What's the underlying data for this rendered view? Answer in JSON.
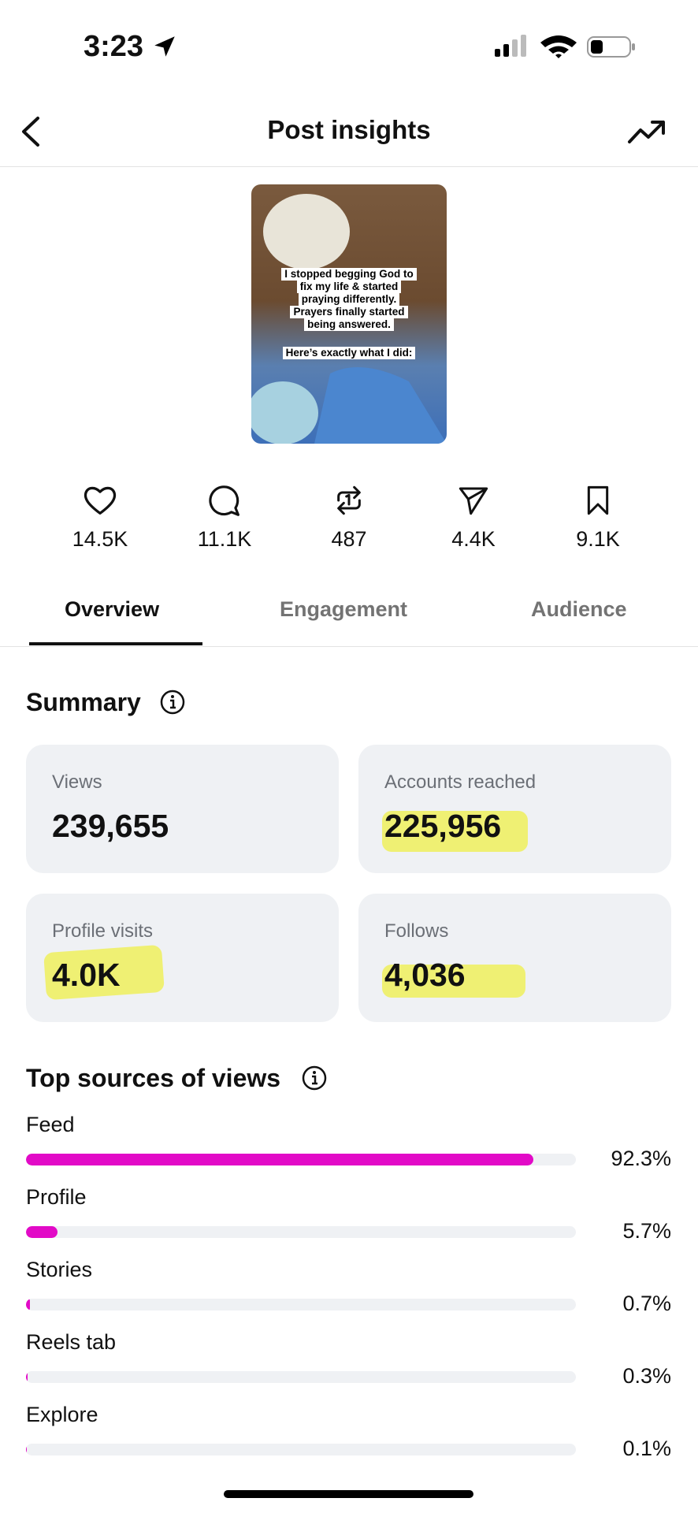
{
  "status_bar": {
    "time": "3:23"
  },
  "header": {
    "title": "Post insights"
  },
  "post": {
    "caption_lines": [
      "I stopped begging God to",
      "fix my life & started",
      "praying differently.",
      "Prayers finally started",
      "being answered."
    ],
    "caption_footer": "Here’s exactly what I did:"
  },
  "stats": [
    "14.5K",
    "11.1K",
    "487",
    "4.4K",
    "9.1K"
  ],
  "tabs": [
    "Overview",
    "Engagement",
    "Audience"
  ],
  "summary": {
    "title": "Summary",
    "cards": [
      {
        "label": "Views",
        "value": "239,655"
      },
      {
        "label": "Accounts reached",
        "value": "225,956"
      },
      {
        "label": "Profile visits",
        "value": "4.0K"
      },
      {
        "label": "Follows",
        "value": "4,036"
      }
    ]
  },
  "top_sources": {
    "title": "Top sources of views",
    "xlim": [
      0,
      100
    ],
    "items": [
      {
        "name": "Feed",
        "value": 92.3,
        "label": "92.3%"
      },
      {
        "name": "Profile",
        "value": 5.7,
        "label": "5.7%"
      },
      {
        "name": "Stories",
        "value": 0.7,
        "label": "0.7%"
      },
      {
        "name": "Reels tab",
        "value": 0.3,
        "label": "0.3%"
      },
      {
        "name": "Explore",
        "value": 0.1,
        "label": "0.1%"
      }
    ]
  }
}
